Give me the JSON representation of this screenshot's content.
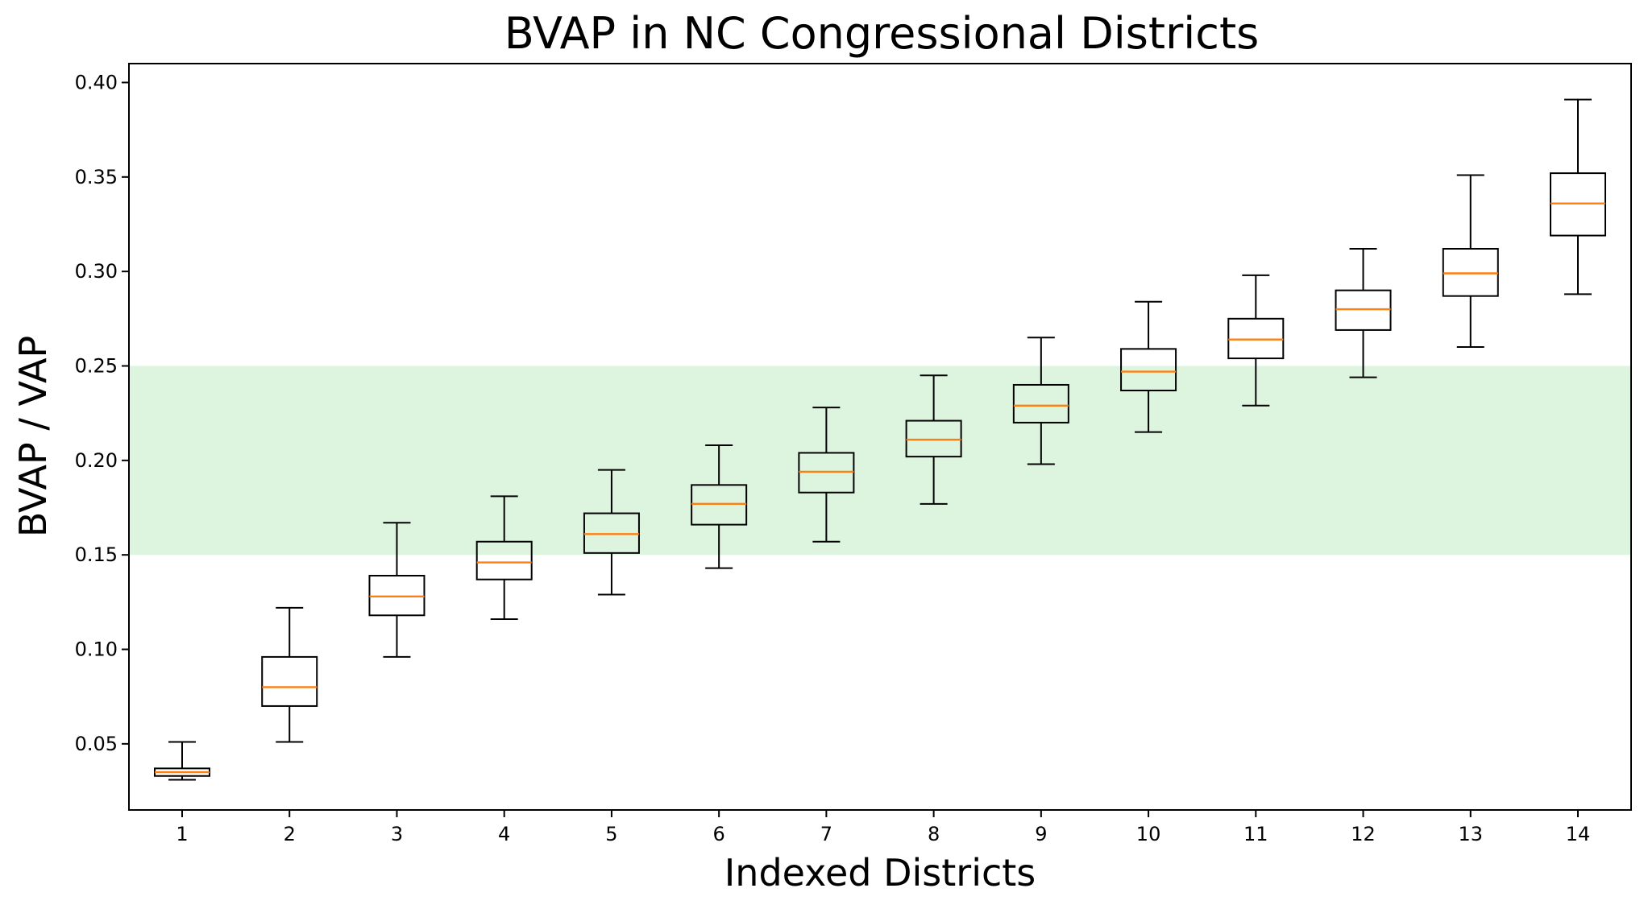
{
  "chart_data": {
    "type": "box",
    "title": "BVAP in NC Congressional Districts",
    "xlabel": "Indexed Districts",
    "ylabel": "BVAP / VAP",
    "ylim": [
      0.015,
      0.41
    ],
    "yticks": [
      "0.05",
      "0.10",
      "0.15",
      "0.20",
      "0.25",
      "0.30",
      "0.35",
      "0.40"
    ],
    "categories": [
      "1",
      "2",
      "3",
      "4",
      "5",
      "6",
      "7",
      "8",
      "9",
      "10",
      "11",
      "12",
      "13",
      "14"
    ],
    "shaded_band": {
      "from": 0.15,
      "to": 0.25,
      "color": "#ddf5de"
    },
    "colors": {
      "box": "#000000",
      "median": "#ff7f0e"
    },
    "grid": false,
    "boxes": [
      {
        "whisker_low": 0.031,
        "q1": 0.033,
        "median": 0.035,
        "q3": 0.037,
        "whisker_high": 0.051
      },
      {
        "whisker_low": 0.051,
        "q1": 0.07,
        "median": 0.08,
        "q3": 0.096,
        "whisker_high": 0.122
      },
      {
        "whisker_low": 0.096,
        "q1": 0.118,
        "median": 0.128,
        "q3": 0.139,
        "whisker_high": 0.167
      },
      {
        "whisker_low": 0.116,
        "q1": 0.137,
        "median": 0.146,
        "q3": 0.157,
        "whisker_high": 0.181
      },
      {
        "whisker_low": 0.129,
        "q1": 0.151,
        "median": 0.161,
        "q3": 0.172,
        "whisker_high": 0.195
      },
      {
        "whisker_low": 0.143,
        "q1": 0.166,
        "median": 0.177,
        "q3": 0.187,
        "whisker_high": 0.208
      },
      {
        "whisker_low": 0.157,
        "q1": 0.183,
        "median": 0.194,
        "q3": 0.204,
        "whisker_high": 0.228
      },
      {
        "whisker_low": 0.177,
        "q1": 0.202,
        "median": 0.211,
        "q3": 0.221,
        "whisker_high": 0.245
      },
      {
        "whisker_low": 0.198,
        "q1": 0.22,
        "median": 0.229,
        "q3": 0.24,
        "whisker_high": 0.265
      },
      {
        "whisker_low": 0.215,
        "q1": 0.237,
        "median": 0.247,
        "q3": 0.259,
        "whisker_high": 0.284
      },
      {
        "whisker_low": 0.229,
        "q1": 0.254,
        "median": 0.264,
        "q3": 0.275,
        "whisker_high": 0.298
      },
      {
        "whisker_low": 0.244,
        "q1": 0.269,
        "median": 0.28,
        "q3": 0.29,
        "whisker_high": 0.312
      },
      {
        "whisker_low": 0.26,
        "q1": 0.287,
        "median": 0.299,
        "q3": 0.312,
        "whisker_high": 0.351
      },
      {
        "whisker_low": 0.288,
        "q1": 0.319,
        "median": 0.336,
        "q3": 0.352,
        "whisker_high": 0.391
      }
    ]
  }
}
